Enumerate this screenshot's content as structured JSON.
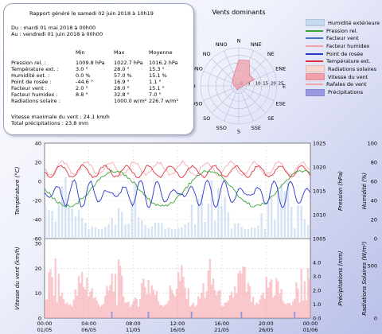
{
  "report": {
    "title": "Rapport généré le samedi 02 juin 2018 à 10h19",
    "period_from": "Du : mardi 01 mai 2018 à 00h00",
    "period_to": "Au : vendredi 01 juin 2018 à 00h00",
    "col_headers": [
      "Min",
      "Max",
      "Moyenne"
    ],
    "rows": [
      {
        "label": "Pression rel. :",
        "min": "1009.8 hPa",
        "max": "1022.7 hPa",
        "avg": "1016.2 hPa"
      },
      {
        "label": "Température ext. :",
        "min": "3.0 °",
        "max": "28.0 °",
        "avg": "15.3 °"
      },
      {
        "label": "Humidité ext. :",
        "min": "0.0 %",
        "max": "57.0 %",
        "avg": "15.1 %"
      },
      {
        "label": "Point de rosée :",
        "min": "-44.6 °",
        "max": "16.9 °",
        "avg": "1.1 °"
      },
      {
        "label": "Facteur vent :",
        "min": "2.0 °",
        "max": "28.0 °",
        "avg": "15.1 °"
      },
      {
        "label": "Facteur humidex :",
        "min": "8.8 °",
        "max": "32.8 °",
        "avg": "7.0 °"
      },
      {
        "label": "Radiations solaire :",
        "min": "",
        "max": "1000.0 w/m²",
        "avg": "226.7 w/m²"
      }
    ],
    "max_wind": "Vitesse maximale du vent : 24.1 km/h",
    "total_precip": "Total précipitations : 23.8 mm"
  },
  "wind_rose": {
    "title": "Vents dominants",
    "directions": [
      "N",
      "NNE",
      "NE",
      "ENE",
      "E",
      "ESE",
      "SE",
      "SSE",
      "S",
      "SSO",
      "SO",
      "OSO",
      "O",
      "ONO",
      "NO",
      "NNO"
    ],
    "radial_ticks": [
      "0",
      "5",
      "10",
      "15",
      "20",
      "25"
    ],
    "values": [
      17,
      18,
      10,
      11,
      3,
      2,
      1,
      1,
      2,
      3,
      2,
      2,
      3,
      4,
      6,
      8
    ],
    "color": "#f2a0a8"
  },
  "legend": [
    {
      "label": "Humidité extérieure",
      "swatch": "fill",
      "color": "#c6d8f0"
    },
    {
      "label": "Pression rel.",
      "swatch": "line",
      "color": "#3aa43a"
    },
    {
      "label": "Facteur vent",
      "swatch": "line",
      "color": "#4a6ed8"
    },
    {
      "label": "Facteur humidex",
      "swatch": "line",
      "color": "#f4a0a8"
    },
    {
      "label": "Point de rosée",
      "swatch": "line",
      "color": "#2a36c8"
    },
    {
      "label": "Température ext.",
      "swatch": "line",
      "color": "#e03040"
    },
    {
      "label": "Radiations solaires",
      "swatch": "fill",
      "color": "#f6d8d0"
    },
    {
      "label": "Vitesse du vent",
      "swatch": "fill",
      "color": "#f4a0a8"
    },
    {
      "label": "Rafales de vent",
      "swatch": "line",
      "color": "#f4a0a8"
    },
    {
      "label": "Précipitations",
      "swatch": "fill",
      "color": "#9a98e0"
    }
  ],
  "top_chart": {
    "ylabel_left": "Température (°C)",
    "ylabel_mid": "Pression (hPa)",
    "ylabel_right": "Humidité (%)",
    "yticks_left": [
      "40",
      "20",
      "0",
      "-20",
      "-40",
      "-60"
    ],
    "yticks_mid": [
      "1025",
      "1020",
      "1015",
      "1010",
      "1005"
    ],
    "yticks_right": [
      "100",
      "80",
      "60",
      "40",
      "20",
      "0"
    ]
  },
  "bottom_chart": {
    "ylabel_left": "Vitesse du vent (km/h)",
    "ylabel_mid": "Précipitations (mm)",
    "ylabel_right": "Radiations Solaires (W/m²)",
    "yticks_left": [
      "30",
      "20",
      "10",
      "0"
    ],
    "yticks_mid": [
      "4.0",
      "3.0",
      "2.0",
      "1.0",
      "0.0"
    ],
    "yticks_right": [
      "500",
      "0"
    ],
    "xticks_time": [
      "00:00",
      "04:00",
      "08:00",
      "12:00",
      "16:00",
      "20:00",
      "00:00"
    ],
    "xticks_date": [
      "01/05",
      "06/05",
      "11/05",
      "16/05",
      "21/05",
      "26/05",
      "01/06"
    ]
  }
}
